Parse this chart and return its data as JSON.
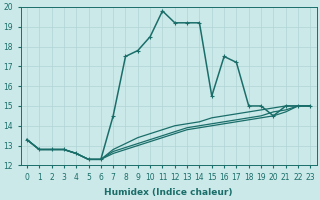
{
  "xlabel": "Humidex (Indice chaleur)",
  "ylabel": "",
  "xlim": [
    -0.5,
    23.5
  ],
  "ylim": [
    12,
    20
  ],
  "xticks": [
    0,
    1,
    2,
    3,
    4,
    5,
    6,
    7,
    8,
    9,
    10,
    11,
    12,
    13,
    14,
    15,
    16,
    17,
    18,
    19,
    20,
    21,
    22,
    23
  ],
  "yticks": [
    12,
    13,
    14,
    15,
    16,
    17,
    18,
    19,
    20
  ],
  "bg_color": "#cce9e9",
  "grid_color": "#b0d4d4",
  "line_color": "#1a6e6a",
  "lines": [
    {
      "x": [
        0,
        1,
        2,
        3,
        4,
        5,
        6,
        7,
        8,
        9,
        10,
        11,
        12,
        13,
        14,
        15,
        16,
        17,
        18,
        19,
        20,
        21,
        22,
        23
      ],
      "y": [
        13.3,
        12.8,
        12.8,
        12.8,
        12.6,
        12.3,
        12.3,
        14.5,
        17.5,
        17.8,
        18.5,
        19.8,
        19.2,
        19.2,
        19.2,
        15.5,
        17.5,
        17.2,
        15.0,
        15.0,
        14.5,
        15.0,
        15.0,
        15.0
      ],
      "marker": true,
      "lw": 1.1
    },
    {
      "x": [
        0,
        1,
        2,
        3,
        4,
        5,
        6,
        7,
        8,
        9,
        10,
        11,
        12,
        13,
        14,
        15,
        16,
        17,
        18,
        19,
        20,
        21,
        22,
        23
      ],
      "y": [
        13.3,
        12.8,
        12.8,
        12.8,
        12.6,
        12.3,
        12.3,
        12.8,
        13.1,
        13.4,
        13.6,
        13.8,
        14.0,
        14.1,
        14.2,
        14.4,
        14.5,
        14.6,
        14.7,
        14.8,
        14.9,
        15.0,
        15.0,
        15.0
      ],
      "marker": false,
      "lw": 0.9
    },
    {
      "x": [
        0,
        1,
        2,
        3,
        4,
        5,
        6,
        7,
        8,
        9,
        10,
        11,
        12,
        13,
        14,
        15,
        16,
        17,
        18,
        19,
        20,
        21,
        22,
        23
      ],
      "y": [
        13.3,
        12.8,
        12.8,
        12.8,
        12.6,
        12.3,
        12.3,
        12.7,
        12.9,
        13.1,
        13.3,
        13.5,
        13.7,
        13.9,
        14.0,
        14.1,
        14.2,
        14.3,
        14.4,
        14.5,
        14.7,
        14.8,
        15.0,
        15.0
      ],
      "marker": false,
      "lw": 0.9
    },
    {
      "x": [
        0,
        1,
        2,
        3,
        4,
        5,
        6,
        7,
        8,
        9,
        10,
        11,
        12,
        13,
        14,
        15,
        16,
        17,
        18,
        19,
        20,
        21,
        22,
        23
      ],
      "y": [
        13.3,
        12.8,
        12.8,
        12.8,
        12.6,
        12.3,
        12.3,
        12.6,
        12.8,
        13.0,
        13.2,
        13.4,
        13.6,
        13.8,
        13.9,
        14.0,
        14.1,
        14.2,
        14.3,
        14.4,
        14.5,
        14.7,
        15.0,
        15.0
      ],
      "marker": false,
      "lw": 0.9
    }
  ],
  "tick_fontsize": 5.5,
  "xlabel_fontsize": 6.5,
  "xlabel_fontweight": "bold"
}
